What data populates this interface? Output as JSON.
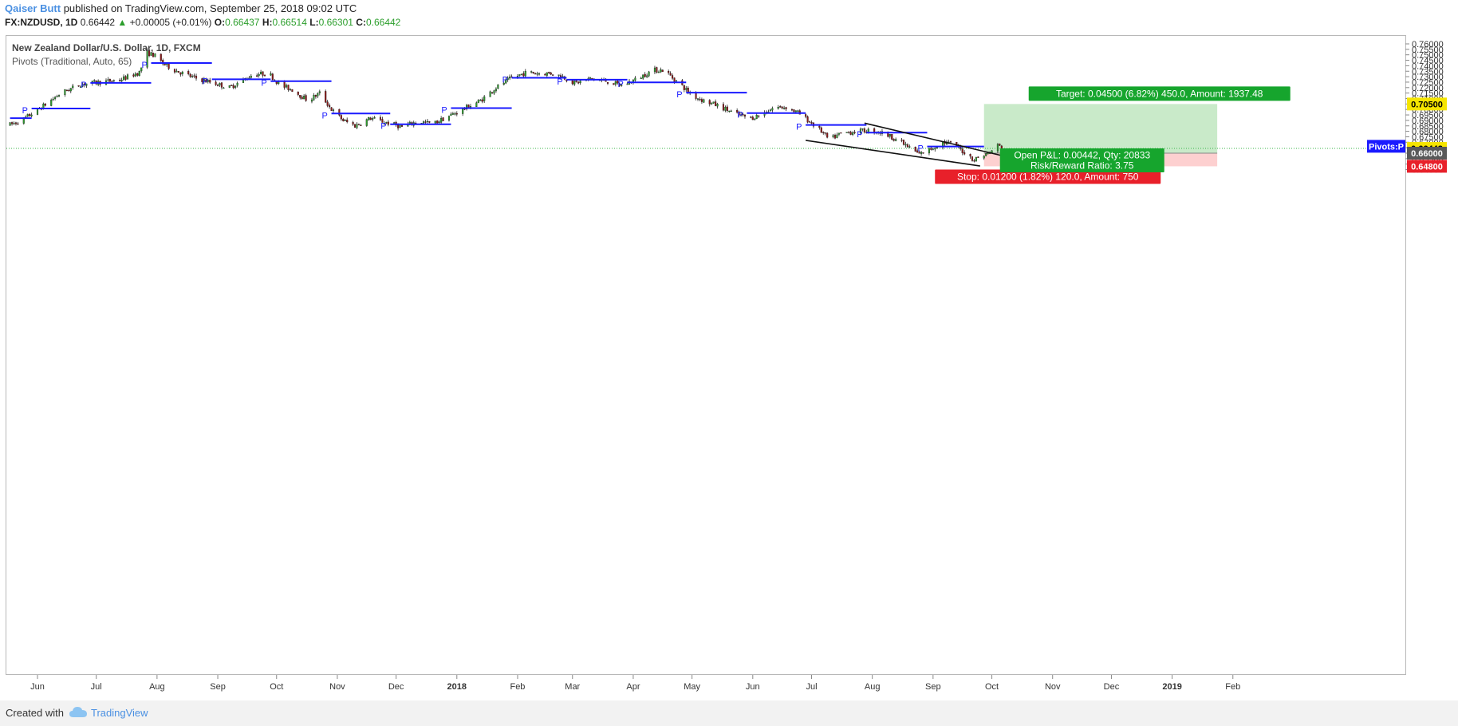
{
  "header": {
    "author": "Qaiser Butt",
    "published": "published on TradingView.com, September 25, 2018 09:02 UTC",
    "symbol": "FX:NZDUSD, 1D",
    "last": "0.66442",
    "change": "+0.00005 (+0.01%)",
    "o_label": "O:",
    "o": "0.66437",
    "h_label": "H:",
    "h": "0.66514",
    "l_label": "L:",
    "l": "0.66301",
    "c_label": "C:",
    "c": "0.66442"
  },
  "footer": {
    "created": "Created with",
    "brand": "TradingView"
  },
  "colors": {
    "bull": "#2e9b2e",
    "bear": "#8b1a1a",
    "pivot": "#1a1aff",
    "target_zone": "#c9eac9",
    "stop_zone": "#fdd0d0",
    "target_label": "#16a52d",
    "stop_label": "#e8202a"
  },
  "chart_data": {
    "type": "candlestick",
    "title": "New Zealand Dollar/U.S. Dollar, 1D, FXCM",
    "subtitle": "Pivots (Traditional, Auto, 65)",
    "ylim": [
      0.644,
      0.7615
    ],
    "y_ticks": [
      "0.76000",
      "0.75500",
      "0.75000",
      "0.74500",
      "0.74000",
      "0.73500",
      "0.73000",
      "0.72500",
      "0.72000",
      "0.71500",
      "0.71000",
      "0.70500",
      "0.70000",
      "0.69500",
      "0.69000",
      "0.68500",
      "0.68000",
      "0.67500",
      "0.67000",
      "0.66500",
      "0.66000",
      "0.65500",
      "0.65000",
      "0.64500"
    ],
    "x_ticks": [
      {
        "label": "Jun",
        "day": 0
      },
      {
        "label": "Jul",
        "day": 30
      },
      {
        "label": "Aug",
        "day": 61
      },
      {
        "label": "Sep",
        "day": 92
      },
      {
        "label": "Oct",
        "day": 122
      },
      {
        "label": "Nov",
        "day": 153
      },
      {
        "label": "Dec",
        "day": 183
      },
      {
        "label": "2018",
        "day": 214
      },
      {
        "label": "Feb",
        "day": 245
      },
      {
        "label": "Mar",
        "day": 273
      },
      {
        "label": "Apr",
        "day": 304
      },
      {
        "label": "May",
        "day": 334
      },
      {
        "label": "Jun",
        "day": 365
      },
      {
        "label": "Jul",
        "day": 395
      },
      {
        "label": "Aug",
        "day": 426
      },
      {
        "label": "Sep",
        "day": 457
      },
      {
        "label": "Oct",
        "day": 487
      },
      {
        "label": "Nov",
        "day": 518
      },
      {
        "label": "Dec",
        "day": 548
      },
      {
        "label": "2019",
        "day": 579
      },
      {
        "label": "Feb",
        "day": 610
      }
    ],
    "price_path": [
      [
        -14,
        0.686
      ],
      [
        -8,
        0.69
      ],
      [
        2,
        0.702
      ],
      [
        12,
        0.715
      ],
      [
        22,
        0.723
      ],
      [
        32,
        0.725
      ],
      [
        42,
        0.727
      ],
      [
        52,
        0.734
      ],
      [
        56,
        0.752
      ],
      [
        60,
        0.749
      ],
      [
        64,
        0.742
      ],
      [
        70,
        0.736
      ],
      [
        80,
        0.729
      ],
      [
        90,
        0.724
      ],
      [
        98,
        0.72
      ],
      [
        104,
        0.726
      ],
      [
        110,
        0.732
      ],
      [
        118,
        0.733
      ],
      [
        124,
        0.722
      ],
      [
        130,
        0.718
      ],
      [
        138,
        0.708
      ],
      [
        144,
        0.715
      ],
      [
        150,
        0.7
      ],
      [
        156,
        0.69
      ],
      [
        162,
        0.685
      ],
      [
        170,
        0.692
      ],
      [
        178,
        0.688
      ],
      [
        186,
        0.684
      ],
      [
        194,
        0.689
      ],
      [
        202,
        0.687
      ],
      [
        210,
        0.694
      ],
      [
        218,
        0.701
      ],
      [
        226,
        0.708
      ],
      [
        234,
        0.72
      ],
      [
        242,
        0.729
      ],
      [
        250,
        0.734
      ],
      [
        256,
        0.733
      ],
      [
        262,
        0.733
      ],
      [
        268,
        0.73
      ],
      [
        274,
        0.724
      ],
      [
        282,
        0.728
      ],
      [
        290,
        0.726
      ],
      [
        298,
        0.722
      ],
      [
        306,
        0.728
      ],
      [
        314,
        0.736
      ],
      [
        320,
        0.736
      ],
      [
        324,
        0.729
      ],
      [
        328,
        0.723
      ],
      [
        334,
        0.713
      ],
      [
        340,
        0.708
      ],
      [
        348,
        0.703
      ],
      [
        356,
        0.696
      ],
      [
        364,
        0.692
      ],
      [
        370,
        0.696
      ],
      [
        376,
        0.702
      ],
      [
        382,
        0.702
      ],
      [
        388,
        0.697
      ],
      [
        394,
        0.689
      ],
      [
        400,
        0.68
      ],
      [
        404,
        0.672
      ],
      [
        410,
        0.678
      ],
      [
        418,
        0.68
      ],
      [
        426,
        0.681
      ],
      [
        432,
        0.678
      ],
      [
        438,
        0.673
      ],
      [
        444,
        0.666
      ],
      [
        450,
        0.659
      ],
      [
        456,
        0.664
      ],
      [
        462,
        0.67
      ],
      [
        468,
        0.668
      ],
      [
        474,
        0.659
      ],
      [
        478,
        0.654
      ],
      [
        482,
        0.658
      ],
      [
        486,
        0.66
      ],
      [
        489,
        0.668
      ],
      [
        492,
        0.665
      ]
    ],
    "pivots": [
      {
        "x1": -3,
        "x2": 27,
        "y": 0.7009
      },
      {
        "x1": 27,
        "x2": 58,
        "y": 0.7243
      },
      {
        "x1": 58,
        "x2": 89,
        "y": 0.7425
      },
      {
        "x1": 89,
        "x2": 119,
        "y": 0.7276
      },
      {
        "x1": 119,
        "x2": 150,
        "y": 0.7259
      },
      {
        "x1": 150,
        "x2": 180,
        "y": 0.6963
      },
      {
        "x1": 180,
        "x2": 211,
        "y": 0.6865
      },
      {
        "x1": 211,
        "x2": 242,
        "y": 0.7012
      },
      {
        "x1": 242,
        "x2": 270,
        "y": 0.729
      },
      {
        "x1": 270,
        "x2": 301,
        "y": 0.7272
      },
      {
        "x1": 301,
        "x2": 331,
        "y": 0.7248
      },
      {
        "x1": 331,
        "x2": 362,
        "y": 0.7154
      },
      {
        "x1": 362,
        "x2": 392,
        "y": 0.6967
      },
      {
        "x1": 392,
        "x2": 423,
        "y": 0.6858
      },
      {
        "x1": 423,
        "x2": 454,
        "y": 0.6788
      },
      {
        "x1": 454,
        "x2": 483,
        "y": 0.6661
      }
    ],
    "first_pivot_partial": {
      "x1": -14,
      "x2": -3,
      "y": 0.692
    },
    "trendlines": [
      {
        "x1": 422,
        "y1": 0.6875,
        "x2": 494,
        "y2": 0.657
      },
      {
        "x1": 392,
        "y1": 0.6717,
        "x2": 481,
        "y2": 0.6483
      }
    ],
    "position": {
      "x1": 483,
      "x2": 602,
      "entry": 0.66,
      "target": 0.705,
      "stop": 0.648,
      "last_price": 0.66442,
      "target_label": "Target: 0.04500 (6.82%) 450.0, Amount: 1937.48",
      "stop_label": "Stop: 0.01200 (1.82%) 120.0, Amount: 750",
      "pnl_label": "Open P&L: 0.00442, Qty: 20833",
      "rr_label": "Risk/Reward Ratio: 3.75"
    },
    "price_labels": {
      "target": "0.70500",
      "last": "0.66442",
      "entry": "0.66000",
      "stop": "0.64800",
      "pivot_tag": "Pivots:P"
    },
    "pivot_marker": "P"
  }
}
